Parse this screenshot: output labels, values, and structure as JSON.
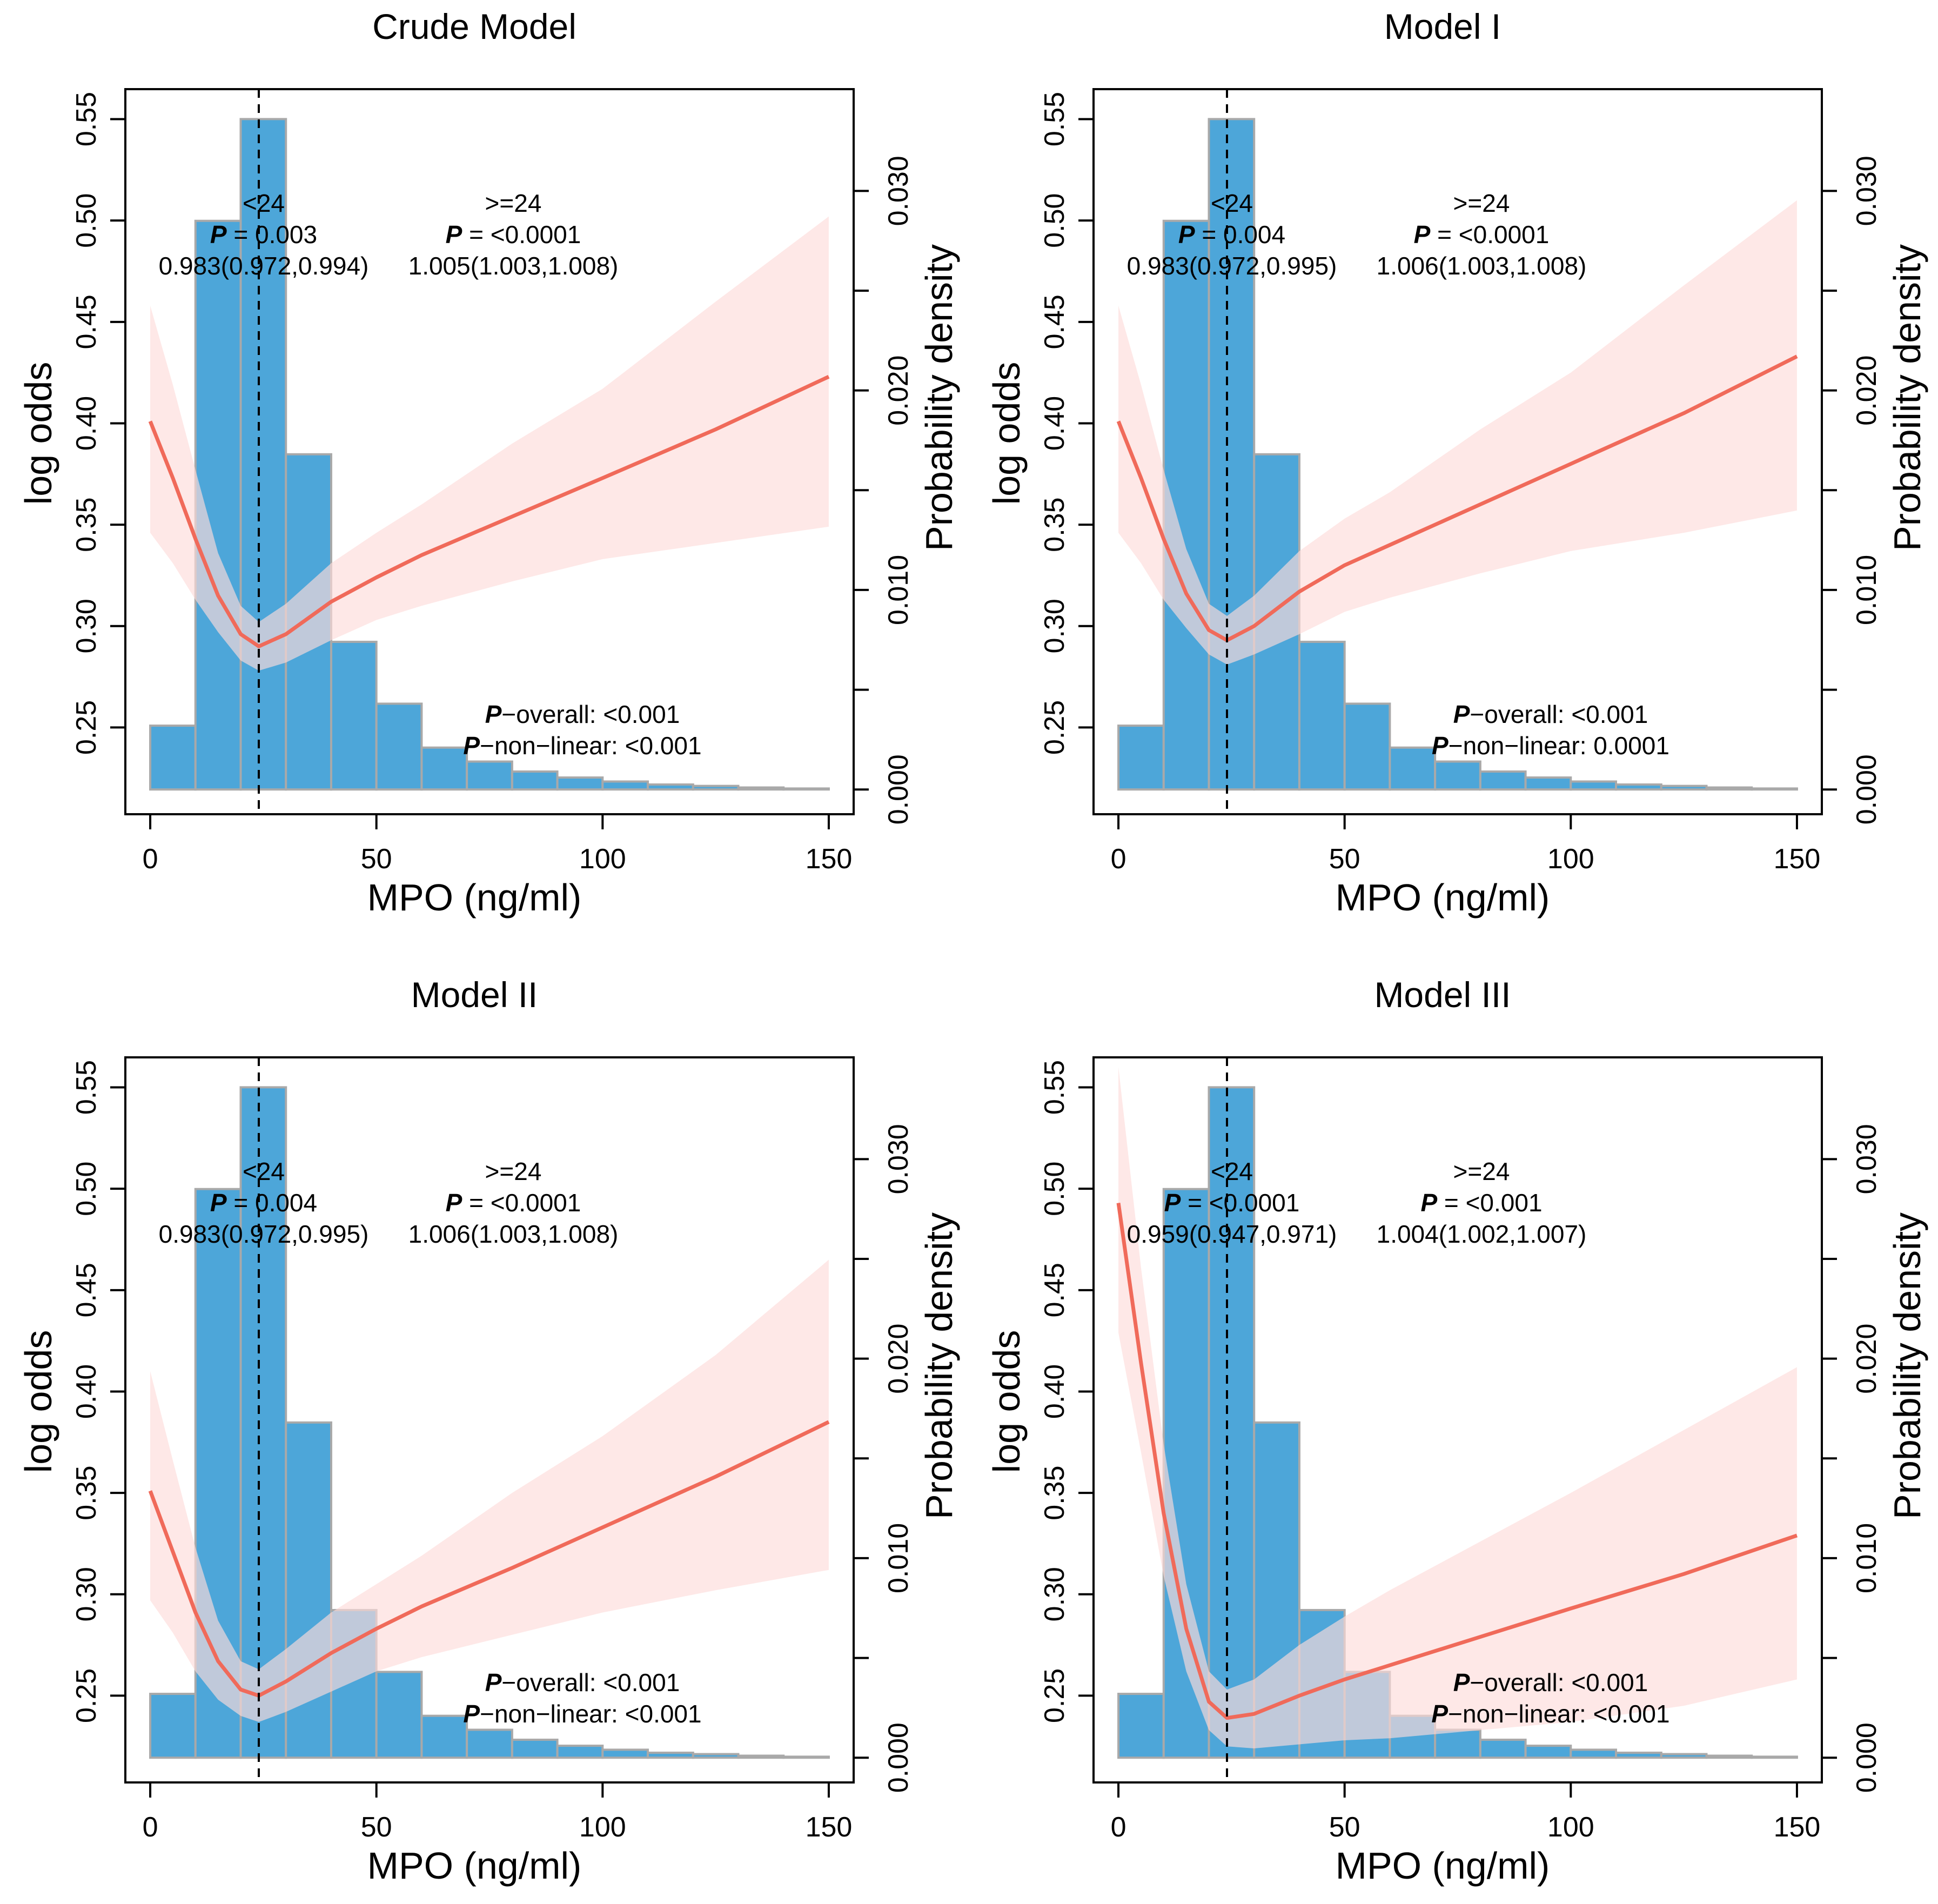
{
  "figure": {
    "colors": {
      "histogram_fill": "#4DA6D9",
      "histogram_border": "#A9A9A9",
      "curve": "#F06A5A",
      "ribbon": "#FDDCDA",
      "cutoff_line": "#000000"
    },
    "shared": {
      "x_ticks": [
        0,
        50,
        100,
        150
      ],
      "left_ticks": [
        0.25,
        0.3,
        0.35,
        0.4,
        0.45,
        0.5,
        0.55
      ],
      "left_tick_labels": [
        "0.25",
        "0.30",
        "0.35",
        "0.40",
        "0.45",
        "0.50",
        "0.55"
      ],
      "right_ticks": [
        0.0,
        0.005,
        0.01,
        0.015,
        0.02,
        0.025,
        0.03
      ],
      "right_tick_labels": [
        "0.000",
        "",
        "0.010",
        "",
        "0.020",
        "",
        "0.030"
      ],
      "xlim": [
        -5.5,
        155.5
      ],
      "left_ylim": [
        0.2072,
        0.5648
      ],
      "right_ylim": [
        -0.00124,
        0.0351
      ],
      "cutoff_x": 24,
      "histogram_bins": [
        0,
        10,
        20,
        30,
        40,
        50,
        60,
        70,
        80,
        90,
        100,
        110,
        120,
        130,
        140,
        150
      ],
      "histogram_density": [
        0.0032,
        0.0285,
        0.0336,
        0.0168,
        0.0074,
        0.0043,
        0.0021,
        0.0014,
        0.0009,
        0.0006,
        0.0004,
        0.00025,
        0.00018,
        0.0001,
        5e-05
      ]
    }
  },
  "chart_data": [
    {
      "type": "line",
      "title": "Crude Model",
      "xlabel": "MPO (ng/ml)",
      "ylabel": "log odds",
      "ylabel_right": "Probability density",
      "cutoff": 24,
      "curve": {
        "x": [
          0,
          5,
          10,
          15,
          20,
          24,
          30,
          40,
          50,
          60,
          80,
          100,
          125,
          150
        ],
        "y": [
          0.401,
          0.373,
          0.343,
          0.315,
          0.296,
          0.29,
          0.296,
          0.312,
          0.324,
          0.335,
          0.354,
          0.373,
          0.397,
          0.423
        ],
        "lower": [
          0.346,
          0.331,
          0.313,
          0.297,
          0.283,
          0.278,
          0.282,
          0.293,
          0.303,
          0.31,
          0.322,
          0.333,
          0.341,
          0.349
        ],
        "upper": [
          0.458,
          0.419,
          0.377,
          0.336,
          0.31,
          0.302,
          0.311,
          0.331,
          0.346,
          0.36,
          0.39,
          0.417,
          0.46,
          0.502
        ]
      },
      "annotations": {
        "left_segment": "<24",
        "left_p_label": "P",
        "left_p_value": " = 0.003",
        "left_estimate": "0.983(0.972,0.994)",
        "right_segment": ">=24",
        "right_p_label": "P",
        "right_p_value": " = <0.0001",
        "right_estimate": "1.005(1.003,1.008)",
        "overall_label": "P",
        "overall_text": "−overall: <0.001",
        "nonlinear_label": "P",
        "nonlinear_text": "−non−linear: <0.001"
      }
    },
    {
      "type": "line",
      "title": "Model I",
      "xlabel": "MPO (ng/ml)",
      "ylabel": "log odds",
      "ylabel_right": "Probability density",
      "cutoff": 24,
      "curve": {
        "x": [
          0,
          5,
          10,
          15,
          20,
          24,
          30,
          40,
          50,
          60,
          80,
          100,
          125,
          150
        ],
        "y": [
          0.401,
          0.373,
          0.343,
          0.316,
          0.298,
          0.293,
          0.3,
          0.317,
          0.33,
          0.34,
          0.36,
          0.38,
          0.405,
          0.433
        ],
        "lower": [
          0.346,
          0.331,
          0.313,
          0.299,
          0.286,
          0.281,
          0.286,
          0.296,
          0.307,
          0.314,
          0.326,
          0.337,
          0.346,
          0.357
        ],
        "upper": [
          0.458,
          0.419,
          0.377,
          0.338,
          0.311,
          0.305,
          0.315,
          0.337,
          0.353,
          0.366,
          0.397,
          0.425,
          0.468,
          0.51
        ]
      },
      "annotations": {
        "left_segment": "<24",
        "left_p_label": "P",
        "left_p_value": " = 0.004",
        "left_estimate": "0.983(0.972,0.995)",
        "right_segment": ">=24",
        "right_p_label": "P",
        "right_p_value": " = <0.0001",
        "right_estimate": "1.006(1.003,1.008)",
        "overall_label": "P",
        "overall_text": "−overall: <0.001",
        "nonlinear_label": "P",
        "nonlinear_text": "−non−linear: 0.0001"
      }
    },
    {
      "type": "line",
      "title": "Model II",
      "xlabel": "MPO (ng/ml)",
      "ylabel": "log odds",
      "ylabel_right": "Probability density",
      "cutoff": 24,
      "curve": {
        "x": [
          0,
          5,
          10,
          15,
          20,
          24,
          30,
          40,
          50,
          60,
          80,
          100,
          125,
          150
        ],
        "y": [
          0.351,
          0.321,
          0.291,
          0.267,
          0.253,
          0.25,
          0.257,
          0.271,
          0.283,
          0.294,
          0.313,
          0.333,
          0.358,
          0.385
        ],
        "lower": [
          0.297,
          0.281,
          0.262,
          0.248,
          0.24,
          0.237,
          0.242,
          0.252,
          0.262,
          0.269,
          0.28,
          0.291,
          0.302,
          0.312
        ],
        "upper": [
          0.41,
          0.366,
          0.323,
          0.287,
          0.267,
          0.263,
          0.273,
          0.291,
          0.305,
          0.319,
          0.35,
          0.378,
          0.418,
          0.465
        ]
      },
      "annotations": {
        "left_segment": "<24",
        "left_p_label": "P",
        "left_p_value": " = 0.004",
        "left_estimate": "0.983(0.972,0.995)",
        "right_segment": ">=24",
        "right_p_label": "P",
        "right_p_value": " = <0.0001",
        "right_estimate": "1.006(1.003,1.008)",
        "overall_label": "P",
        "overall_text": "−overall: <0.001",
        "nonlinear_label": "P",
        "nonlinear_text": "−non−linear: <0.001"
      }
    },
    {
      "type": "line",
      "title": "Model III",
      "xlabel": "MPO (ng/ml)",
      "ylabel": "log odds",
      "ylabel_right": "Probability density",
      "cutoff": 24,
      "curve": {
        "x": [
          0,
          5,
          10,
          15,
          20,
          24,
          30,
          40,
          50,
          60,
          80,
          100,
          125,
          150
        ],
        "y": [
          0.493,
          0.414,
          0.34,
          0.283,
          0.247,
          0.239,
          0.241,
          0.25,
          0.258,
          0.265,
          0.279,
          0.293,
          0.31,
          0.329
        ],
        "lower": [
          0.429,
          0.37,
          0.309,
          0.262,
          0.233,
          0.225,
          0.224,
          0.226,
          0.228,
          0.229,
          0.233,
          0.237,
          0.245,
          0.258
        ],
        "upper": [
          0.56,
          0.461,
          0.374,
          0.305,
          0.262,
          0.253,
          0.258,
          0.275,
          0.289,
          0.302,
          0.326,
          0.35,
          0.381,
          0.412
        ]
      },
      "annotations": {
        "left_segment": "<24",
        "left_p_label": "P",
        "left_p_value": " = <0.0001",
        "left_estimate": "0.959(0.947,0.971)",
        "right_segment": ">=24",
        "right_p_label": "P",
        "right_p_value": " = <0.001",
        "right_estimate": "1.004(1.002,1.007)",
        "overall_label": "P",
        "overall_text": "−overall: <0.001",
        "nonlinear_label": "P",
        "nonlinear_text": "−non−linear: <0.001"
      }
    }
  ]
}
